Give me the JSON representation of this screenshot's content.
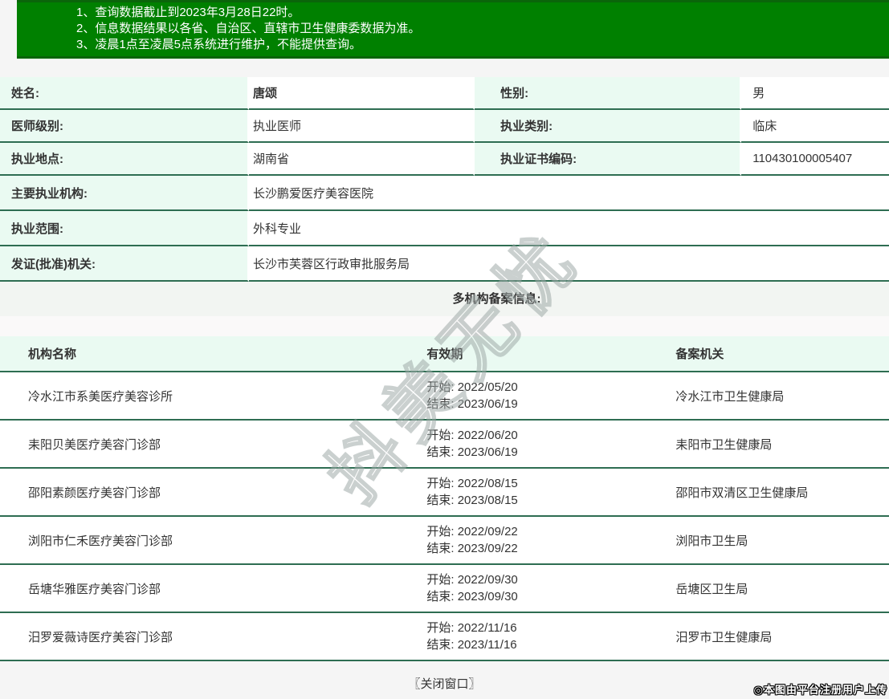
{
  "notices": [
    "1、查询数据截止到2023年3月28日22时。",
    "2、信息数据结果以各省、自治区、直辖市卫生健康委数据为准。",
    "3、凌晨1点至凌晨5点系统进行维护，不能提供查询。"
  ],
  "doctor": {
    "name_label": "姓名:",
    "name": "唐颂",
    "gender_label": "性别:",
    "gender": "男",
    "level_label": "医师级别:",
    "level": "执业医师",
    "category_label": "执业类别:",
    "category": "临床",
    "location_label": "执业地点:",
    "location": "湖南省",
    "cert_no_label": "执业证书编码:",
    "cert_no": "110430100005407",
    "main_org_label": "主要执业机构:",
    "main_org": "长沙鹏爱医疗美容医院",
    "scope_label": "执业范围:",
    "scope": "外科专业",
    "issuer_label": "发证(批准)机关:",
    "issuer": "长沙市芙蓉区行政审批服务局"
  },
  "multi_org": {
    "section_title": "多机构备案信息:",
    "headers": {
      "org": "机构名称",
      "validity": "有效期",
      "authority": "备案机关"
    },
    "rows": [
      {
        "org": "冷水江市系美医疗美容诊所",
        "start": "开始: 2022/05/20",
        "end": "结束: 2023/06/19",
        "authority": "冷水江市卫生健康局"
      },
      {
        "org": "耒阳贝美医疗美容门诊部",
        "start": "开始: 2022/06/20",
        "end": "结束: 2023/06/19",
        "authority": "耒阳市卫生健康局"
      },
      {
        "org": "邵阳素颜医疗美容门诊部",
        "start": "开始: 2022/08/15",
        "end": "结束: 2023/08/15",
        "authority": "邵阳市双清区卫生健康局"
      },
      {
        "org": "浏阳市仁禾医疗美容门诊部",
        "start": "开始: 2022/09/22",
        "end": "结束: 2023/09/22",
        "authority": "浏阳市卫生局"
      },
      {
        "org": "岳塘华雅医疗美容门诊部",
        "start": "开始: 2022/09/30",
        "end": "结束: 2023/09/30",
        "authority": "岳塘区卫生局"
      },
      {
        "org": "汨罗爱薇诗医疗美容门诊部",
        "start": "开始: 2022/11/16",
        "end": "结束: 2023/11/16",
        "authority": "汨罗市卫生健康局"
      }
    ]
  },
  "footer": {
    "close_label": "〖关闭窗口〗",
    "upload_note": "◎本图由平台注册用户上传"
  },
  "watermark_text": "抖美无忧",
  "colors": {
    "banner_green": "#008000",
    "banner_border_green": "#0a650a",
    "row_border_teal": "#2e6d52",
    "label_mint": "#eafaf2",
    "section_gray": "#f2f5f2",
    "page_bg": "#f5f5f5",
    "text": "#333333"
  }
}
